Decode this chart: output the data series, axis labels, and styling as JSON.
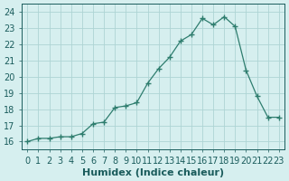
{
  "x": [
    0,
    1,
    2,
    3,
    4,
    5,
    6,
    7,
    8,
    9,
    10,
    11,
    12,
    13,
    14,
    15,
    16,
    17,
    18,
    19,
    20,
    21,
    22,
    23
  ],
  "y": [
    16.0,
    16.2,
    16.2,
    16.3,
    16.3,
    16.5,
    17.1,
    17.2,
    18.1,
    18.2,
    18.4,
    19.6,
    20.5,
    21.2,
    22.2,
    22.6,
    23.6,
    23.2,
    23.7,
    23.1,
    20.4,
    18.8,
    17.5,
    17.5
  ],
  "xlabel": "Humidex (Indice chaleur)",
  "xlim": [
    -0.5,
    23.5
  ],
  "ylim": [
    15.5,
    24.5
  ],
  "yticks": [
    16,
    17,
    18,
    19,
    20,
    21,
    22,
    23,
    24
  ],
  "xticks": [
    0,
    1,
    2,
    3,
    4,
    5,
    6,
    7,
    8,
    9,
    10,
    11,
    12,
    13,
    14,
    15,
    16,
    17,
    18,
    19,
    20,
    21,
    22,
    23
  ],
  "line_color": "#2e7d6e",
  "marker": "+",
  "bg_color": "#d6efef",
  "grid_color": "#aed4d4",
  "text_color": "#1a5c5c",
  "xlabel_fontsize": 8,
  "tick_fontsize": 7
}
